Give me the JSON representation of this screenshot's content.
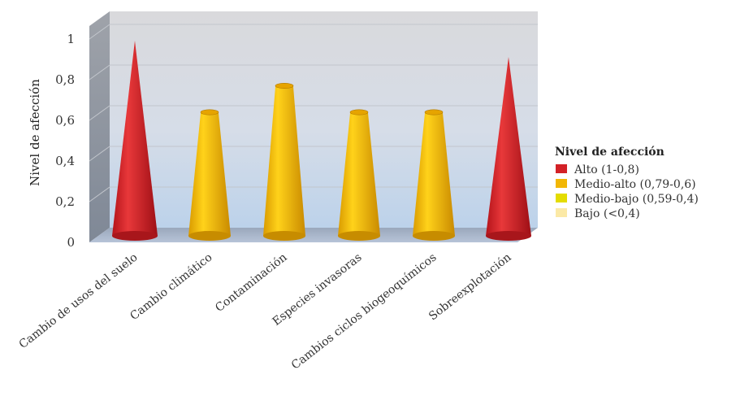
{
  "chart_data": {
    "type": "bar",
    "bar_shape": "cone",
    "ylabel": "Nivel de afección",
    "ylim": [
      0,
      1
    ],
    "yticks": [
      "0",
      "0,2",
      "0,4",
      "0,6",
      "0,8",
      "1"
    ],
    "categories": [
      "Cambio de usos del suelo",
      "Cambio climático",
      "Contaminación",
      "Especies invasoras",
      "Cambios ciclos biogeoquímicos",
      "Sobreexplotación"
    ],
    "values": [
      1.0,
      0.66,
      0.79,
      0.66,
      0.66,
      0.92
    ],
    "levels": [
      "alto",
      "medio-alto",
      "medio-alto",
      "medio-alto",
      "medio-alto",
      "alto"
    ],
    "grid": true,
    "legend": {
      "position": "right",
      "title": "Nivel de afección",
      "items": [
        {
          "key": "alto",
          "label": "Alto (1-0,8)",
          "color": "#d32127"
        },
        {
          "key": "medio-alto",
          "label": "Medio-alto (0,79-0,6)",
          "color": "#f2b705"
        },
        {
          "key": "medio-bajo",
          "label": "Medio-bajo (0,59-0,4)",
          "color": "#e4dc00"
        },
        {
          "key": "bajo",
          "label": "Bajo (<0,4)",
          "color": "#fbe9a6"
        }
      ]
    }
  }
}
